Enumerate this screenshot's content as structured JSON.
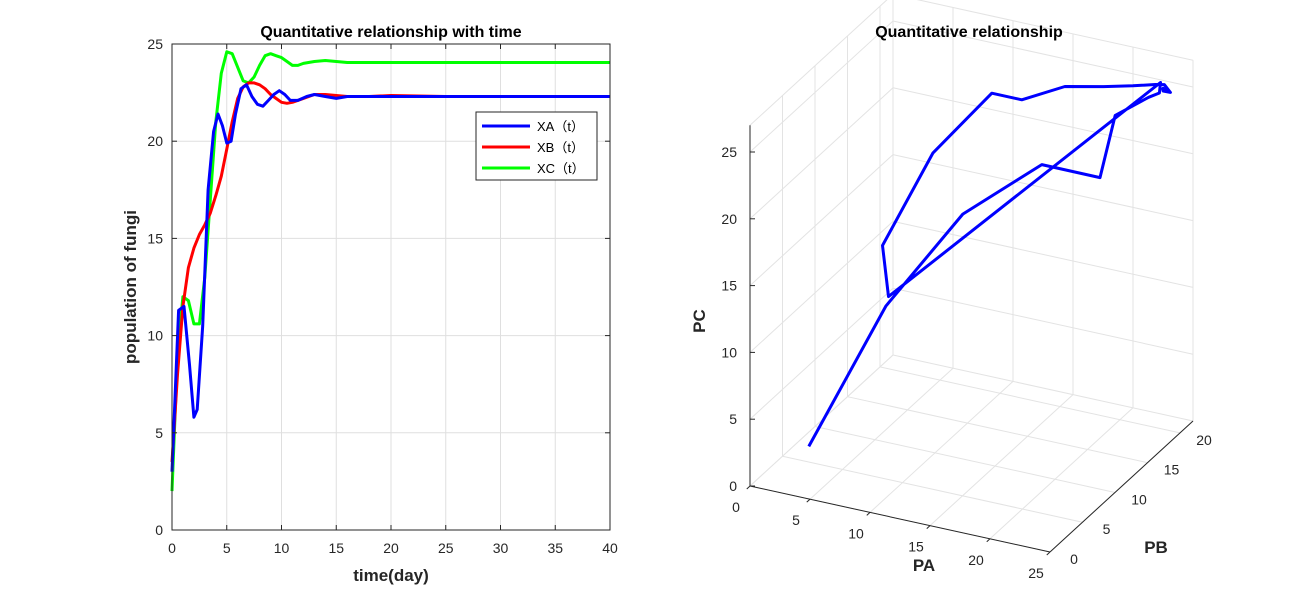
{
  "chart_data": [
    {
      "type": "line",
      "title": "Quantitative relationship with time",
      "xlabel": "time(day)",
      "ylabel": "population of fungi",
      "xlim": [
        0,
        40
      ],
      "ylim": [
        0,
        25
      ],
      "xticks": [
        0,
        5,
        10,
        15,
        20,
        25,
        30,
        35,
        40
      ],
      "yticks": [
        0,
        5,
        10,
        15,
        20,
        25
      ],
      "grid": true,
      "legend_position": "top-right",
      "series": [
        {
          "name": "XA（t）",
          "color": "#0000ff",
          "x": [
            0,
            0.6,
            1.1,
            1.6,
            2.0,
            2.3,
            2.8,
            3.3,
            3.8,
            4.2,
            4.6,
            5.0,
            5.4,
            5.8,
            6.3,
            6.8,
            7.3,
            7.8,
            8.3,
            8.8,
            9.3,
            9.8,
            10.3,
            10.8,
            11.5,
            12.3,
            13.0,
            14.0,
            15.0,
            16.0,
            17.0,
            18.0,
            20.0,
            25.0,
            30.0,
            35.0,
            40.0
          ],
          "y": [
            3.0,
            11.3,
            11.5,
            8.5,
            5.8,
            6.2,
            10.5,
            17.5,
            20.5,
            21.4,
            20.8,
            19.9,
            20.0,
            21.4,
            22.7,
            22.9,
            22.3,
            21.9,
            21.8,
            22.1,
            22.4,
            22.6,
            22.4,
            22.1,
            22.1,
            22.3,
            22.4,
            22.3,
            22.2,
            22.3,
            22.3,
            22.3,
            22.3,
            22.3,
            22.3,
            22.3,
            22.3
          ]
        },
        {
          "name": "XB（t）",
          "color": "#ff0000",
          "x": [
            0,
            0.5,
            1.0,
            1.5,
            2.0,
            2.5,
            3.0,
            3.5,
            4.0,
            4.5,
            5.0,
            5.5,
            6.0,
            6.5,
            7.0,
            7.5,
            8.0,
            8.5,
            9.0,
            9.5,
            10.0,
            10.5,
            11.0,
            12.0,
            13.0,
            14.0,
            15.0,
            16.0,
            18.0,
            20.0,
            25.0,
            30.0,
            35.0,
            40.0
          ],
          "y": [
            3.5,
            8.0,
            11.5,
            13.5,
            14.5,
            15.2,
            15.7,
            16.3,
            17.2,
            18.2,
            19.6,
            21.0,
            22.2,
            22.8,
            23.0,
            23.0,
            22.9,
            22.7,
            22.4,
            22.2,
            22.0,
            21.95,
            22.0,
            22.2,
            22.4,
            22.4,
            22.35,
            22.3,
            22.3,
            22.35,
            22.3,
            22.3,
            22.3,
            22.3
          ]
        },
        {
          "name": "XC（t）",
          "color": "#00ff00",
          "x": [
            0,
            0.5,
            1.0,
            1.5,
            2.0,
            2.5,
            3.0,
            3.5,
            4.0,
            4.5,
            5.0,
            5.5,
            6.0,
            6.5,
            7.0,
            7.5,
            8.0,
            8.5,
            9.0,
            9.5,
            10.0,
            10.5,
            11.0,
            11.5,
            12.0,
            13.0,
            14.0,
            15.0,
            16.0,
            18.0,
            20.0,
            25.0,
            30.0,
            35.0,
            40.0
          ],
          "y": [
            2.0,
            9.0,
            12.0,
            11.8,
            10.6,
            10.6,
            13.0,
            17.0,
            21.0,
            23.5,
            24.6,
            24.5,
            23.8,
            23.1,
            23.0,
            23.3,
            23.9,
            24.4,
            24.5,
            24.4,
            24.3,
            24.1,
            23.9,
            23.9,
            24.0,
            24.1,
            24.15,
            24.1,
            24.05,
            24.05,
            24.05,
            24.05,
            24.05,
            24.05,
            24.05
          ]
        }
      ]
    },
    {
      "type": "line3d",
      "title": "Quantitative relationship",
      "xlabel": "PA",
      "ylabel": "PB",
      "zlabel": "PC",
      "xlim": [
        0,
        25
      ],
      "ylim": [
        0,
        22
      ],
      "zlim": [
        0,
        27
      ],
      "xticks": [
        0,
        5,
        10,
        15,
        20,
        25
      ],
      "yticks": [
        0,
        5,
        10,
        15,
        20
      ],
      "zticks": [
        0,
        5,
        10,
        15,
        20,
        25
      ],
      "grid": true,
      "series": [
        {
          "name": "",
          "color": "#0000ff",
          "x": [
            3.0,
            7.0,
            11.5,
            17.0,
            20.5,
            19.6,
            21.3,
            22.2,
            21.8,
            5.8,
            4.0,
            5.5,
            8.5,
            11.0,
            14.0,
            17.0,
            20.0,
            21.7,
            22.5,
            22.9,
            22.4,
            22.2,
            22.3,
            22.4,
            22.3
          ],
          "y": [
            3.5,
            8.0,
            11.5,
            13.5,
            16.0,
            20.0,
            22.0,
            22.0,
            22.9,
            10.6,
            13.0,
            18.0,
            21.5,
            21.5,
            22.6,
            23.0,
            22.0,
            22.3,
            22.2,
            22.4,
            22.2,
            22.5,
            22.4,
            22.6,
            22.3
          ],
          "z": [
            2.0,
            11.3,
            17.5,
            21.4,
            20.0,
            22.7,
            23.5,
            24.0,
            24.3,
            10.6,
            13.0,
            18.0,
            21.5,
            21.5,
            22.6,
            23.0,
            24.1,
            24.4,
            24.6,
            24.0,
            24.1,
            24.1,
            24.2,
            24.0,
            24.05
          ]
        }
      ]
    }
  ]
}
